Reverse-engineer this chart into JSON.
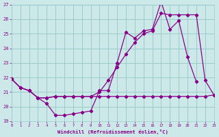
{
  "title": "Windchill (Refroidissement éolien,°C)",
  "bg_color": "#cce8e8",
  "grid_color": "#99cccc",
  "line_color": "#880088",
  "xlim": [
    0,
    23
  ],
  "ylim": [
    19,
    27
  ],
  "yticks": [
    19,
    20,
    21,
    22,
    23,
    24,
    25,
    26,
    27
  ],
  "xticks": [
    0,
    1,
    2,
    3,
    4,
    5,
    6,
    7,
    8,
    9,
    10,
    11,
    12,
    13,
    14,
    15,
    16,
    17,
    18,
    19,
    20,
    21,
    22,
    23
  ],
  "curve1_x": [
    0,
    1,
    2,
    3,
    4,
    5,
    6,
    7,
    8,
    9,
    10,
    11,
    12,
    13,
    14,
    15,
    16,
    17,
    18,
    19,
    20,
    21
  ],
  "curve1_y": [
    21.9,
    21.3,
    21.1,
    20.6,
    20.2,
    19.4,
    19.4,
    19.5,
    19.6,
    19.7,
    21.1,
    21.1,
    23.0,
    25.1,
    24.7,
    25.2,
    25.3,
    27.2,
    25.3,
    25.9,
    23.4,
    21.7
  ],
  "curve2_x": [
    0,
    1,
    2,
    3,
    4,
    5,
    6,
    7,
    8,
    9,
    10,
    11,
    12,
    13,
    14,
    15,
    16,
    17,
    18,
    19,
    20,
    21,
    22,
    23
  ],
  "curve2_y": [
    21.9,
    21.3,
    21.1,
    20.6,
    20.6,
    20.7,
    20.7,
    20.7,
    20.7,
    20.7,
    21.0,
    21.8,
    22.7,
    23.6,
    24.4,
    25.0,
    25.2,
    26.4,
    26.3,
    26.3,
    26.3,
    26.3,
    21.8,
    20.8
  ],
  "curve3_x": [
    0,
    1,
    2,
    3,
    4,
    5,
    6,
    7,
    8,
    9,
    10,
    11,
    12,
    13,
    14,
    15,
    16,
    17,
    18,
    19,
    20,
    21,
    22,
    23
  ],
  "curve3_y": [
    21.9,
    21.3,
    21.1,
    20.6,
    20.6,
    20.7,
    20.7,
    20.7,
    20.7,
    20.7,
    20.7,
    20.7,
    20.7,
    20.7,
    20.7,
    20.7,
    20.7,
    20.7,
    20.7,
    20.7,
    20.7,
    20.7,
    20.7,
    20.8
  ]
}
